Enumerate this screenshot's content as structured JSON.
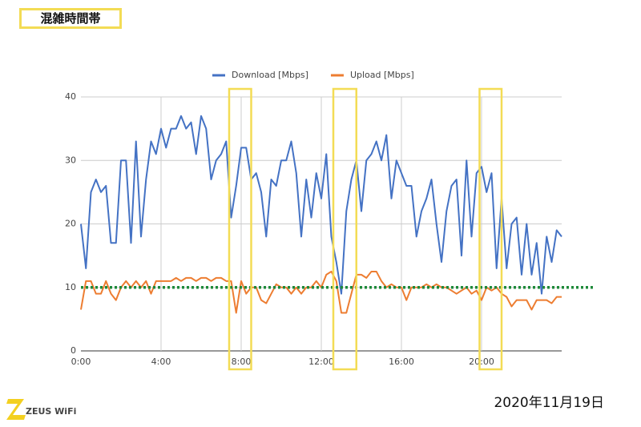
{
  "tag": "混雑時間帯",
  "date": "2020年11月19日",
  "logo": "ZEUS WiFi",
  "chart_data": {
    "type": "line",
    "x": [
      0,
      0.25,
      0.5,
      0.75,
      1,
      1.25,
      1.5,
      1.75,
      2,
      2.25,
      2.5,
      2.75,
      3,
      3.25,
      3.5,
      3.75,
      4,
      4.25,
      4.5,
      4.75,
      5,
      5.25,
      5.5,
      5.75,
      6,
      6.25,
      6.5,
      6.75,
      7,
      7.25,
      7.5,
      7.75,
      8,
      8.25,
      8.5,
      8.75,
      9,
      9.25,
      9.5,
      9.75,
      10,
      10.25,
      10.5,
      10.75,
      11,
      11.25,
      11.5,
      11.75,
      12,
      12.25,
      12.5,
      12.75,
      13,
      13.25,
      13.5,
      13.75,
      14,
      14.25,
      14.5,
      14.75,
      15,
      15.25,
      15.5,
      15.75,
      16,
      16.25,
      16.5,
      16.75,
      17,
      17.25,
      17.5,
      17.75,
      18,
      18.25,
      18.5,
      18.75,
      19,
      19.25,
      19.5,
      19.75,
      20,
      20.25,
      20.5,
      20.75,
      21,
      21.25,
      21.5,
      21.75,
      22,
      22.25,
      22.5,
      22.75,
      23,
      23.25,
      23.5,
      23.75,
      24
    ],
    "series": [
      {
        "name": "Download [Mbps]",
        "color": "#4472c4",
        "values": [
          20,
          13,
          25,
          27,
          25,
          26,
          17,
          17,
          30,
          30,
          17,
          33,
          18,
          27,
          33,
          31,
          35,
          32,
          35,
          35,
          37,
          35,
          36,
          31,
          37,
          35,
          27,
          30,
          31,
          33,
          21,
          26,
          32,
          32,
          27,
          28,
          25,
          18,
          27,
          26,
          30,
          30,
          33,
          28,
          18,
          27,
          21,
          28,
          24,
          31,
          18,
          14,
          9,
          22,
          27,
          30,
          22,
          30,
          31,
          33,
          30,
          34,
          24,
          30,
          28,
          26,
          26,
          18,
          22,
          24,
          27,
          20,
          14,
          22,
          26,
          27,
          15,
          30,
          18,
          28,
          29,
          25,
          28,
          13,
          24,
          13,
          20,
          21,
          12,
          20,
          12,
          17,
          9,
          18,
          14,
          19,
          18
        ]
      },
      {
        "name": "Upload [Mbps]",
        "color": "#ed7d31",
        "values": [
          6.5,
          11,
          11,
          9,
          9,
          11,
          9,
          8,
          10,
          11,
          10,
          11,
          10,
          11,
          9,
          11,
          11,
          11,
          11,
          11.5,
          11,
          11.5,
          11.5,
          11,
          11.5,
          11.5,
          11,
          11.5,
          11.5,
          11,
          11,
          6,
          11,
          9,
          10,
          10,
          8,
          7.5,
          9,
          10.5,
          10,
          10,
          9,
          10,
          9,
          10,
          10,
          11,
          10,
          12,
          12.5,
          11,
          6,
          6,
          9,
          12,
          12,
          11.5,
          12.5,
          12.5,
          11,
          10,
          10.5,
          10,
          10,
          8,
          10,
          10,
          10,
          10.5,
          10,
          10.5,
          10,
          10,
          9.5,
          9,
          9.5,
          10,
          9,
          9.5,
          8,
          10,
          9.5,
          10,
          9,
          8.5,
          7,
          8,
          8,
          8,
          6.5,
          8,
          8,
          8,
          7.5,
          8.5,
          8.5
        ]
      }
    ],
    "xlim": [
      0,
      24
    ],
    "ylim": [
      0,
      40
    ],
    "xticks": [
      {
        "value": 0,
        "label": "0:00"
      },
      {
        "value": 4,
        "label": "4:00"
      },
      {
        "value": 8,
        "label": "8:00"
      },
      {
        "value": 12,
        "label": "12:00"
      },
      {
        "value": 16,
        "label": "16:00"
      },
      {
        "value": 20,
        "label": "20:00"
      }
    ],
    "yticks": [
      0,
      10,
      20,
      30,
      40
    ],
    "grid": true,
    "legend": "top",
    "reference_line": {
      "value": 10,
      "color": "#1e8a3a"
    },
    "highlights": [
      [
        7.4,
        8.5
      ],
      [
        12.6,
        13.75
      ],
      [
        19.9,
        21.0
      ]
    ],
    "highlight_color": "#f3dc55"
  }
}
